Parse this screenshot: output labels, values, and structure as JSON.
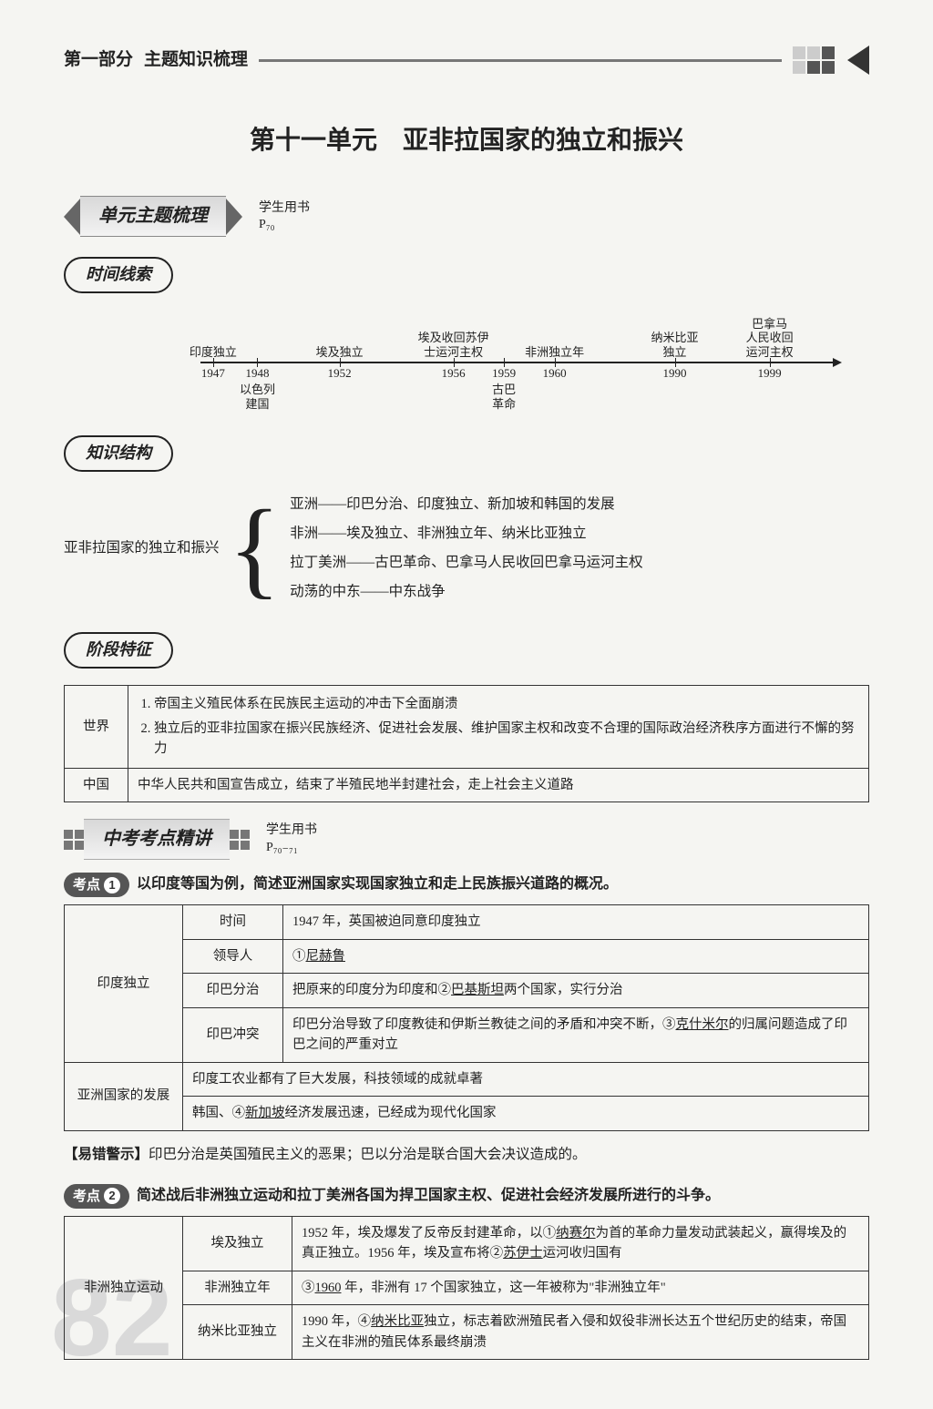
{
  "header": {
    "part": "第一部分",
    "subtitle": "主题知识梳理"
  },
  "title": "第十一单元　亚非拉国家的独立和振兴",
  "section1": {
    "banner": "单元主题梳理",
    "side_top": "学生用书",
    "side_bottom": "P₇₀"
  },
  "timeline": {
    "heading": "时间线索",
    "events": [
      {
        "label_top": "印度独立",
        "year": "1947",
        "label_bottom": "",
        "left_pct": 2
      },
      {
        "label_top": "",
        "year": "1948",
        "label_bottom": "以色列\n建国",
        "left_pct": 9
      },
      {
        "label_top": "埃及独立",
        "year": "1952",
        "label_bottom": "",
        "left_pct": 22
      },
      {
        "label_top": "埃及收回苏伊\n士运河主权",
        "year": "1956",
        "label_bottom": "",
        "left_pct": 40
      },
      {
        "label_top": "",
        "year": "1959",
        "label_bottom": "古巴\n革命",
        "left_pct": 48
      },
      {
        "label_top": "非洲独立年",
        "year": "1960",
        "label_bottom": "",
        "left_pct": 56
      },
      {
        "label_top": "纳米比亚\n独立",
        "year": "1990",
        "label_bottom": "",
        "left_pct": 75
      },
      {
        "label_top": "巴拿马\n人民收回\n运河主权",
        "year": "1999",
        "label_bottom": "",
        "left_pct": 90
      }
    ]
  },
  "knowledge": {
    "heading": "知识结构",
    "left_label": "亚非拉国家的独立和振兴",
    "lines": [
      "亚洲——印巴分治、印度独立、新加坡和韩国的发展",
      "非洲——埃及独立、非洲独立年、纳米比亚独立",
      "拉丁美洲——古巴革命、巴拿马人民收回巴拿马运河主权",
      "动荡的中东——中东战争"
    ]
  },
  "stage": {
    "heading": "阶段特征",
    "rows": [
      {
        "scope": "世界",
        "items": [
          "帝国主义殖民体系在民族民主运动的冲击下全面崩溃",
          "独立后的亚非拉国家在振兴民族经济、促进社会发展、维护国家主权和改变不合理的国际政治经济秩序方面进行不懈的努力"
        ]
      },
      {
        "scope": "中国",
        "text": "中华人民共和国宣告成立，结束了半殖民地半封建社会，走上社会主义道路"
      }
    ]
  },
  "section2": {
    "banner": "中考考点精讲",
    "side_top": "学生用书",
    "side_bottom": "P₇₀₋₇₁"
  },
  "kaodian1": {
    "label": "考点",
    "num": "1",
    "title": "以印度等国为例，简述亚洲国家实现国家独立和走上民族振兴道路的概况。",
    "table": {
      "r1": {
        "group": "印度独立",
        "c1": "时间",
        "c2": "1947 年，英国被迫同意印度独立"
      },
      "r2": {
        "c1": "领导人",
        "c2_pre": "①",
        "c2_u": "尼赫鲁"
      },
      "r3": {
        "c1": "印巴分治",
        "c2_pre": "把原来的印度分为印度和②",
        "c2_u": "巴基斯坦",
        "c2_post": "两个国家，实行分治"
      },
      "r4": {
        "c1": "印巴冲突",
        "c2_pre": "印巴分治导致了印度教徒和伊斯兰教徒之间的矛盾和冲突不断，③",
        "c2_u": "克什米尔",
        "c2_post": "的归属问题造成了印巴之间的严重对立"
      },
      "r5": {
        "group": "亚洲国家的发展",
        "c2": "印度工农业都有了巨大发展，科技领域的成就卓著"
      },
      "r6": {
        "c2_pre": "韩国、④",
        "c2_u": "新加坡",
        "c2_post": "经济发展迅速，已经成为现代化国家"
      }
    }
  },
  "warning": {
    "label": "【易错警示】",
    "text": "印巴分治是英国殖民主义的恶果；巴以分治是联合国大会决议造成的。"
  },
  "kaodian2": {
    "label": "考点",
    "num": "2",
    "title": "简述战后非洲独立运动和拉丁美洲各国为捍卫国家主权、促进社会经济发展所进行的斗争。",
    "table": {
      "group": "非洲独立运动",
      "r1": {
        "c1": "埃及独立",
        "c2_a": "1952 年，埃及爆发了反帝反封建革命，以①",
        "c2_u1": "纳赛尔",
        "c2_b": "为首的革命力量发动武装起义，赢得埃及的真正独立。1956 年，埃及宣布将②",
        "c2_u2": "苏伊士",
        "c2_c": "运河收归国有"
      },
      "r2": {
        "c1": "非洲独立年",
        "c2_pre": "③",
        "c2_u": "1960",
        "c2_post": " 年，非洲有 17 个国家独立，这一年被称为\"非洲独立年\""
      },
      "r3": {
        "c1": "纳米比亚独立",
        "c2_pre": "1990 年，④",
        "c2_u": "纳米比亚",
        "c2_post": "独立，标志着欧洲殖民者入侵和奴役非洲长达五个世纪历史的结束，帝国主义在非洲的殖民体系最终崩溃"
      }
    }
  },
  "page_number": "82"
}
